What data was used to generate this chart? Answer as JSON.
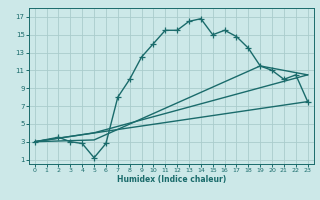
{
  "xlabel": "Humidex (Indice chaleur)",
  "background_color": "#cce8e8",
  "grid_color": "#aacccc",
  "line_color": "#1a6b6b",
  "xlim": [
    -0.5,
    23.5
  ],
  "ylim": [
    0.5,
    18
  ],
  "xticks": [
    0,
    1,
    2,
    3,
    4,
    5,
    6,
    7,
    8,
    9,
    10,
    11,
    12,
    13,
    14,
    15,
    16,
    17,
    18,
    19,
    20,
    21,
    22,
    23
  ],
  "yticks": [
    1,
    3,
    5,
    7,
    9,
    11,
    13,
    15,
    17
  ],
  "series1_x": [
    0,
    2,
    3,
    4,
    5,
    6,
    7,
    8,
    9,
    10,
    11,
    12,
    13,
    14,
    15,
    16,
    17,
    18,
    19,
    20,
    21,
    22,
    23
  ],
  "series1_y": [
    3,
    3.5,
    3,
    2.8,
    1.2,
    2.8,
    8,
    10,
    12.5,
    14,
    15.5,
    15.5,
    16.5,
    16.8,
    15,
    15.5,
    14.8,
    13.5,
    11.5,
    11,
    10,
    10.5,
    7.5
  ],
  "series2_x": [
    0,
    23
  ],
  "series2_y": [
    3,
    7.5
  ],
  "series3_x": [
    0,
    5,
    19,
    23
  ],
  "series3_y": [
    3,
    3.2,
    11.5,
    10.5
  ],
  "series4_x": [
    0,
    5,
    23
  ],
  "series4_y": [
    3,
    4,
    10.5
  ],
  "marker_size": 4,
  "linewidth": 1.0
}
